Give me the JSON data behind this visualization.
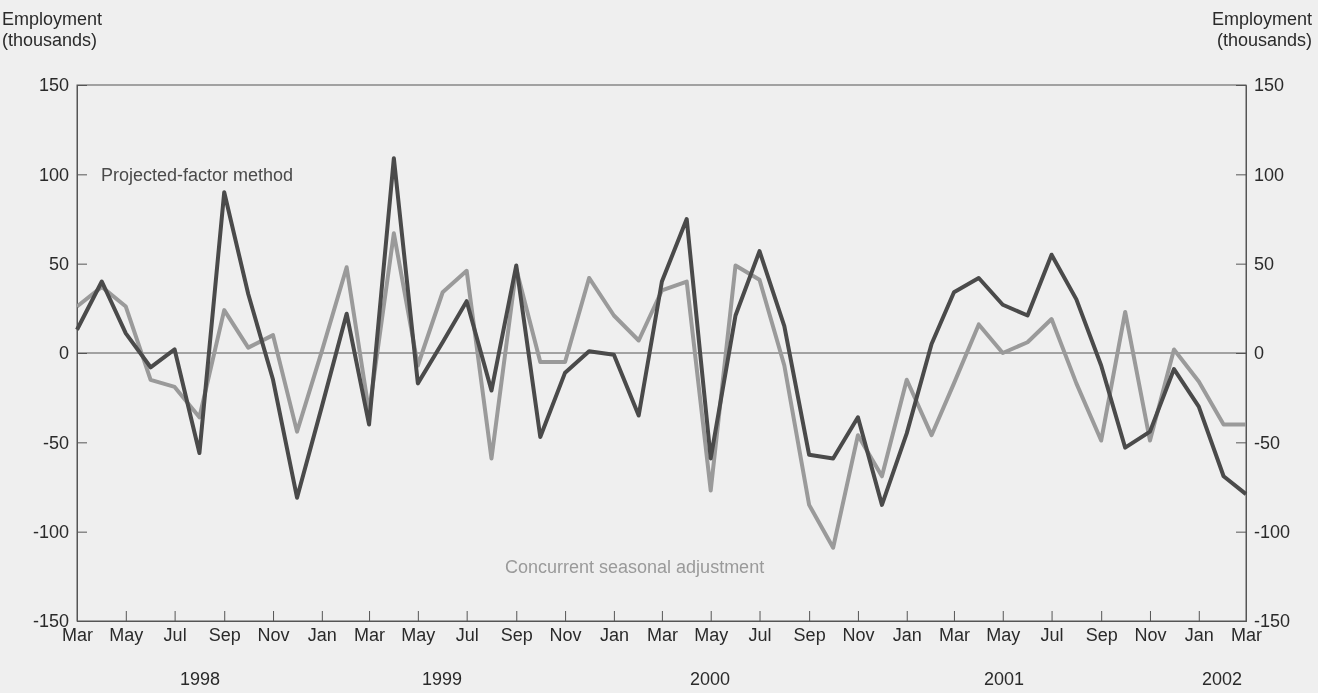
{
  "chart_data": {
    "type": "line",
    "ylabel": "Employment\n(thousands)",
    "y2label": "Employment\n(thousands)",
    "x": [
      "1998-03",
      "1998-04",
      "1998-05",
      "1998-06",
      "1998-07",
      "1998-08",
      "1998-09",
      "1998-10",
      "1998-11",
      "1998-12",
      "1999-01",
      "1999-02",
      "1999-03",
      "1999-04",
      "1999-05",
      "1999-06",
      "1999-07",
      "1999-08",
      "1999-09",
      "1999-10",
      "1999-11",
      "1999-12",
      "2000-01",
      "2000-02",
      "2000-03",
      "2000-04",
      "2000-05",
      "2000-06",
      "2000-07",
      "2000-08",
      "2000-09",
      "2000-10",
      "2000-11",
      "2000-12",
      "2001-01",
      "2001-02",
      "2001-03",
      "2001-04",
      "2001-05",
      "2001-06",
      "2001-07",
      "2001-08",
      "2001-09",
      "2001-10",
      "2001-11",
      "2001-12",
      "2002-01",
      "2002-02",
      "2002-03"
    ],
    "series": [
      {
        "name": "Concurrent seasonal adjustment",
        "color": "#9a9a9a",
        "values": [
          26,
          37,
          26,
          -15,
          -19,
          -36,
          24,
          3,
          10,
          -44,
          1,
          48,
          -33,
          67,
          -7,
          34,
          46,
          -59,
          47,
          -5,
          -5,
          42,
          21,
          7,
          35,
          40,
          -77,
          49,
          41,
          -7,
          -85,
          -109,
          -46,
          -69,
          -15,
          -46,
          -17,
          16,
          0,
          6,
          19,
          -17,
          -49,
          23,
          -49,
          2,
          -16,
          -40,
          -40
        ]
      },
      {
        "name": "Projected-factor method",
        "color": "#4a4a4a",
        "values": [
          13,
          40,
          11,
          -8,
          2,
          -56,
          90,
          33,
          -15,
          -81,
          -30,
          22,
          -40,
          109,
          -17,
          6,
          29,
          -21,
          49,
          -47,
          -11,
          1,
          -1,
          -35,
          40,
          75,
          -59,
          21,
          57,
          15,
          -57,
          -59,
          -36,
          -85,
          -45,
          5,
          34,
          42,
          27,
          21,
          55,
          30,
          -7,
          -53,
          -44,
          -9,
          -30,
          -69,
          -79
        ]
      }
    ],
    "xlim": [
      "1998-03",
      "2002-03"
    ],
    "xticks": [
      {
        "value": "1998-03",
        "label": "Mar"
      },
      {
        "value": "1998-05",
        "label": "May"
      },
      {
        "value": "1998-07",
        "label": "Jul"
      },
      {
        "value": "1998-09",
        "label": "Sep"
      },
      {
        "value": "1998-11",
        "label": "Nov"
      },
      {
        "value": "1999-01",
        "label": "Jan"
      },
      {
        "value": "1999-03",
        "label": "Mar"
      },
      {
        "value": "1999-05",
        "label": "May"
      },
      {
        "value": "1999-07",
        "label": "Jul"
      },
      {
        "value": "1999-09",
        "label": "Sep"
      },
      {
        "value": "1999-11",
        "label": "Nov"
      },
      {
        "value": "2000-01",
        "label": "Jan"
      },
      {
        "value": "2000-03",
        "label": "Mar"
      },
      {
        "value": "2000-05",
        "label": "May"
      },
      {
        "value": "2000-07",
        "label": "Jul"
      },
      {
        "value": "2000-09",
        "label": "Sep"
      },
      {
        "value": "2000-11",
        "label": "Nov"
      },
      {
        "value": "2001-01",
        "label": "Jan"
      },
      {
        "value": "2001-03",
        "label": "Mar"
      },
      {
        "value": "2001-05",
        "label": "May"
      },
      {
        "value": "2001-07",
        "label": "Jul"
      },
      {
        "value": "2001-09",
        "label": "Sep"
      },
      {
        "value": "2001-11",
        "label": "Nov"
      },
      {
        "value": "2002-01",
        "label": "Jan"
      },
      {
        "value": "2002-03",
        "label": "Mar"
      }
    ],
    "ylim": [
      -150,
      150
    ],
    "yticks": [
      -150,
      -100,
      -50,
      0,
      50,
      100,
      150
    ],
    "y2lim": [
      -150,
      150
    ],
    "y2ticks": [
      -150,
      -100,
      -50,
      0,
      50,
      100,
      150
    ],
    "ref_lines": [
      {
        "axis": "y",
        "value": 0,
        "color": "#555555"
      }
    ],
    "annotations": [
      "1998",
      "1999",
      "2000",
      "2001",
      "2002"
    ],
    "line_style": "solid",
    "marker": "none",
    "grid": false,
    "legend": false
  }
}
